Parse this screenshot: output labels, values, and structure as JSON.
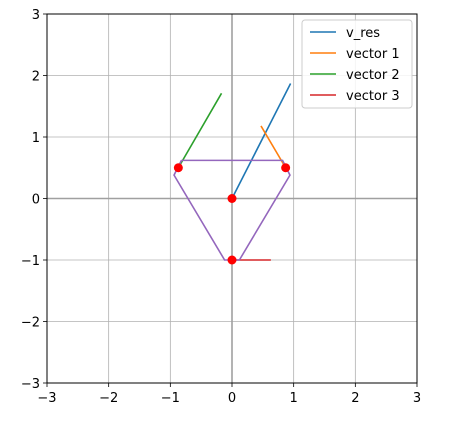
{
  "chart_data": {
    "type": "line",
    "title": "",
    "xlabel": "",
    "ylabel": "",
    "xlim": [
      -3,
      3
    ],
    "ylim": [
      -3,
      3
    ],
    "xticks": [
      -3,
      -2,
      -1,
      0,
      1,
      2,
      3
    ],
    "yticks": [
      -3,
      -2,
      -1,
      0,
      1,
      2,
      3
    ],
    "xtick_labels": [
      "−3",
      "−2",
      "−1",
      "0",
      "1",
      "2",
      "3"
    ],
    "ytick_labels": [
      "−3",
      "−2",
      "−1",
      "0",
      "1",
      "2",
      "3"
    ],
    "grid": true,
    "axis_lines": true,
    "legend_position": "top-right",
    "series": [
      {
        "name": "v_res",
        "color": "#1f77b4",
        "x": [
          0,
          0.95
        ],
        "y": [
          0,
          1.87
        ]
      },
      {
        "name": "vector 1",
        "color": "#ff7f0e",
        "x": [
          0.87,
          0.47
        ],
        "y": [
          0.5,
          1.18
        ]
      },
      {
        "name": "vector 2",
        "color": "#2ca02c",
        "x": [
          -0.87,
          -0.17
        ],
        "y": [
          0.5,
          1.71
        ]
      },
      {
        "name": "vector 3",
        "color": "#d62728",
        "x": [
          0,
          0.63
        ],
        "y": [
          -1,
          -1
        ]
      }
    ],
    "polygon": {
      "color": "#9467bd",
      "x": [
        -0.82,
        0.82,
        0.94,
        0.12,
        -0.12,
        -0.94,
        -0.82
      ],
      "y": [
        0.62,
        0.62,
        0.38,
        -1.0,
        -1.0,
        0.38,
        0.62
      ]
    },
    "points": {
      "color": "#ff0000",
      "x": [
        0.87,
        -0.87,
        0,
        0
      ],
      "y": [
        0.5,
        0.5,
        -1,
        0
      ]
    }
  }
}
